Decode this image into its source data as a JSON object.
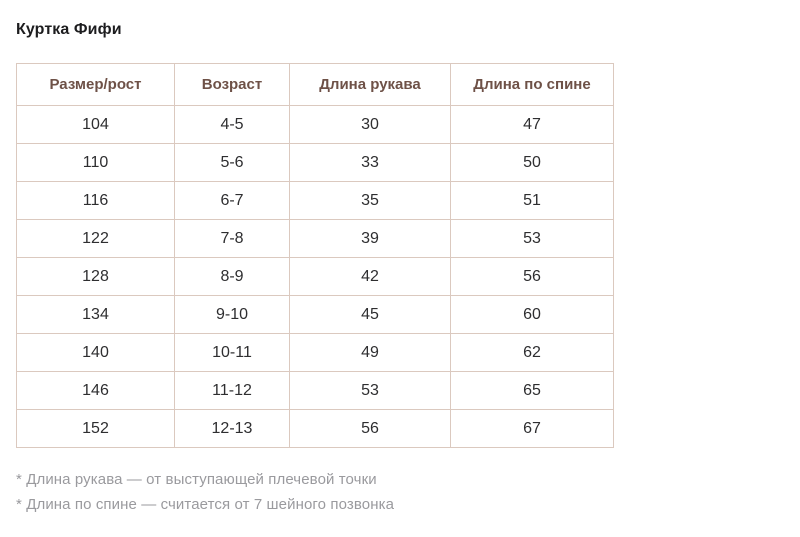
{
  "page": {
    "title": "Куртка Фифи"
  },
  "size_table": {
    "headers": [
      "Размер/рост",
      "Возраст",
      "Длина рукава",
      "Длина по спине"
    ],
    "rows": [
      [
        "104",
        "4-5",
        "30",
        "47"
      ],
      [
        "110",
        "5-6",
        "33",
        "50"
      ],
      [
        "116",
        "6-7",
        "35",
        "51"
      ],
      [
        "122",
        "7-8",
        "39",
        "53"
      ],
      [
        "128",
        "8-9",
        "42",
        "56"
      ],
      [
        "134",
        "9-10",
        "45",
        "60"
      ],
      [
        "140",
        "10-11",
        "49",
        "62"
      ],
      [
        "146",
        "11-12",
        "53",
        "65"
      ],
      [
        "152",
        "12-13",
        "56",
        "67"
      ]
    ]
  },
  "footnotes": [
    "* Длина рукава — от выступающей плечевой точки",
    "* Длина по спине — считается от 7 шейного позвонка"
  ],
  "colors": {
    "title_text": "#1d1d1f",
    "header_text": "#6e5147",
    "cell_text": "#2e2e30",
    "table_border": "#dbc9bf",
    "footnote_text": "#9a9a9e",
    "background": "#ffffff"
  }
}
